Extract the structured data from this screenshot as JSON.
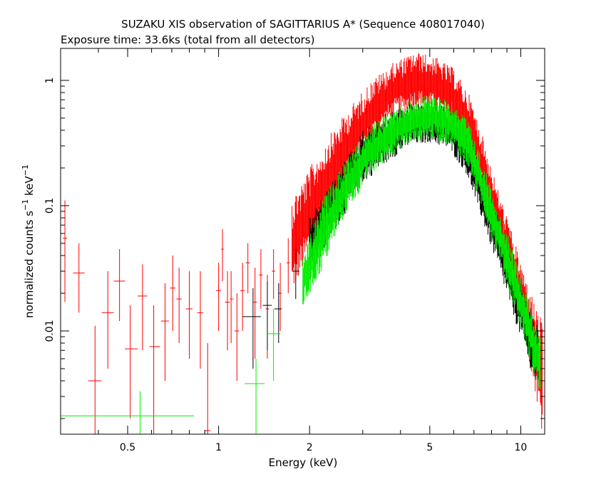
{
  "chart_data": {
    "type": "scatter",
    "title": "SUZAKU XIS observation of SAGITTARIUS A* (Sequence 408017040)",
    "subtitle": "Exposure time: 33.6ks (total from all detectors)",
    "xlabel": "Energy (keV)",
    "ylabel_parts": {
      "base": "normalized counts s",
      "sup1": "−1",
      "mid": " keV",
      "sup2": "−1"
    },
    "x_scale": "log",
    "y_scale": "log",
    "xlim": [
      0.3,
      12
    ],
    "ylim": [
      0.0015,
      1.8
    ],
    "x_ticks": [
      {
        "value": 0.5,
        "label": "0.5"
      },
      {
        "value": 1,
        "label": "1"
      },
      {
        "value": 2,
        "label": "2"
      },
      {
        "value": 5,
        "label": "5"
      },
      {
        "value": 10,
        "label": "10"
      }
    ],
    "y_ticks": [
      {
        "value": 0.01,
        "label": "0.01"
      },
      {
        "value": 0.1,
        "label": "0.1"
      },
      {
        "value": 1,
        "label": "1"
      }
    ],
    "grid": false,
    "series": [
      {
        "color": "#ff0000",
        "points": [
          {
            "x": 0.31,
            "y": 0.055,
            "xerr": [
              0.305,
              0.315
            ],
            "yerr": [
              0.017,
              0.11
            ]
          },
          {
            "x": 0.345,
            "y": 0.029,
            "xerr": [
              0.33,
              0.36
            ],
            "yerr": [
              0.014,
              0.05
            ]
          },
          {
            "x": 0.39,
            "y": 0.004,
            "xerr": [
              0.37,
              0.41
            ],
            "yerr": [
              0.0015,
              0.011
            ]
          },
          {
            "x": 0.43,
            "y": 0.014,
            "xerr": [
              0.41,
              0.45
            ],
            "yerr": [
              0.005,
              0.03
            ]
          },
          {
            "x": 0.47,
            "y": 0.025,
            "xerr": [
              0.45,
              0.49
            ],
            "yerr": [
              0.012,
              0.045
            ]
          },
          {
            "x": 0.51,
            "y": 0.0072,
            "xerr": [
              0.49,
              0.54
            ],
            "yerr": [
              0.002,
              0.016
            ]
          },
          {
            "x": 0.56,
            "y": 0.019,
            "xerr": [
              0.54,
              0.58
            ],
            "yerr": [
              0.007,
              0.034
            ]
          },
          {
            "x": 0.61,
            "y": 0.0075,
            "xerr": [
              0.59,
              0.64
            ],
            "yerr": [
              0.0015,
              0.016
            ]
          },
          {
            "x": 0.665,
            "y": 0.012,
            "xerr": [
              0.645,
              0.685
            ],
            "yerr": [
              0.004,
              0.024
            ]
          },
          {
            "x": 0.705,
            "y": 0.022,
            "xerr": [
              0.69,
              0.72
            ],
            "yerr": [
              0.01,
              0.04
            ]
          },
          {
            "x": 0.74,
            "y": 0.018,
            "xerr": [
              0.725,
              0.755
            ],
            "yerr": [
              0.008,
              0.032
            ]
          },
          {
            "x": 0.8,
            "y": 0.015,
            "xerr": [
              0.78,
              0.82
            ],
            "yerr": [
              0.006,
              0.03
            ]
          },
          {
            "x": 0.87,
            "y": 0.014,
            "xerr": [
              0.85,
              0.89
            ],
            "yerr": [
              0.005,
              0.03
            ]
          },
          {
            "x": 0.92,
            "y": 0.0016,
            "xerr": [
              0.9,
              0.94
            ],
            "yerr": [
              0.0015,
              0.008
            ]
          },
          {
            "x": 1.0,
            "y": 0.021,
            "xerr": [
              0.98,
              1.02
            ],
            "yerr": [
              0.01,
              0.035
            ]
          },
          {
            "x": 1.03,
            "y": 0.045,
            "xerr": [
              1.02,
              1.04
            ],
            "yerr": [
              0.025,
              0.065
            ]
          },
          {
            "x": 1.07,
            "y": 0.017,
            "xerr": [
              1.05,
              1.09
            ],
            "yerr": [
              0.007,
              0.03
            ]
          },
          {
            "x": 1.1,
            "y": 0.018,
            "xerr": [
              1.09,
              1.12
            ],
            "yerr": [
              0.008,
              0.03
            ]
          },
          {
            "x": 1.15,
            "y": 0.01,
            "xerr": [
              1.13,
              1.17
            ],
            "yerr": [
              0.004,
              0.02
            ]
          },
          {
            "x": 1.2,
            "y": 0.021,
            "xerr": [
              1.18,
              1.22
            ],
            "yerr": [
              0.01,
              0.035
            ]
          },
          {
            "x": 1.25,
            "y": 0.035,
            "xerr": [
              1.23,
              1.27
            ],
            "yerr": [
              0.02,
              0.05
            ]
          },
          {
            "x": 1.32,
            "y": 0.017,
            "xerr": [
              1.3,
              1.34
            ],
            "yerr": [
              0.006,
              0.032
            ]
          },
          {
            "x": 1.38,
            "y": 0.028,
            "xerr": [
              1.36,
              1.4
            ],
            "yerr": [
              0.015,
              0.045
            ]
          },
          {
            "x": 1.45,
            "y": 0.015,
            "xerr": [
              1.43,
              1.47
            ],
            "yerr": [
              0.006,
              0.028
            ]
          },
          {
            "x": 1.52,
            "y": 0.03,
            "xerr": [
              1.5,
              1.54
            ],
            "yerr": [
              0.018,
              0.045
            ]
          },
          {
            "x": 1.6,
            "y": 0.02,
            "xerr": [
              1.58,
              1.62
            ],
            "yerr": [
              0.01,
              0.035
            ]
          },
          {
            "x": 1.7,
            "y": 0.035,
            "xerr": [
              1.68,
              1.72
            ],
            "yerr": [
              0.02,
              0.055
            ]
          },
          {
            "x": 1.8,
            "y": 0.045,
            "xerr": [
              1.78,
              1.82
            ],
            "yerr": [
              0.025,
              0.07
            ]
          },
          {
            "x": 1.9,
            "y": 0.06,
            "xerr": [
              1.88,
              1.92
            ],
            "yerr": [
              0.035,
              0.09
            ]
          }
        ],
        "band": [
          {
            "x": 1.75,
            "lo": 0.02,
            "hi": 0.12
          },
          {
            "x": 2.0,
            "lo": 0.04,
            "hi": 0.2
          },
          {
            "x": 2.3,
            "lo": 0.08,
            "hi": 0.35
          },
          {
            "x": 2.7,
            "lo": 0.16,
            "hi": 0.6
          },
          {
            "x": 3.2,
            "lo": 0.32,
            "hi": 1.0
          },
          {
            "x": 3.8,
            "lo": 0.5,
            "hi": 1.4
          },
          {
            "x": 4.5,
            "lo": 0.6,
            "hi": 1.7
          },
          {
            "x": 5.2,
            "lo": 0.55,
            "hi": 1.55
          },
          {
            "x": 6.0,
            "lo": 0.42,
            "hi": 1.25
          },
          {
            "x": 6.8,
            "lo": 0.25,
            "hi": 0.75
          },
          {
            "x": 7.5,
            "lo": 0.12,
            "hi": 0.35
          },
          {
            "x": 8.3,
            "lo": 0.05,
            "hi": 0.15
          },
          {
            "x": 9.2,
            "lo": 0.025,
            "hi": 0.07
          },
          {
            "x": 10.0,
            "lo": 0.012,
            "hi": 0.035
          },
          {
            "x": 11.0,
            "lo": 0.004,
            "hi": 0.018
          },
          {
            "x": 11.8,
            "lo": 0.0015,
            "hi": 0.012
          }
        ]
      },
      {
        "color": "#000000",
        "points": [
          {
            "x": 1.3,
            "y": 0.013,
            "xerr": [
              1.2,
              1.38
            ],
            "yerr": [
              0.005,
              0.022
            ]
          },
          {
            "x": 1.45,
            "y": 0.016,
            "xerr": [
              1.4,
              1.5
            ],
            "yerr": [
              0.007,
              0.025
            ]
          },
          {
            "x": 1.58,
            "y": 0.015,
            "xerr": [
              1.53,
              1.62
            ],
            "yerr": [
              0.008,
              0.024
            ]
          },
          {
            "x": 1.8,
            "y": 0.03,
            "xerr": [
              1.75,
              1.85
            ],
            "yerr": [
              0.018,
              0.045
            ]
          }
        ],
        "band": [
          {
            "x": 2.0,
            "lo": 0.025,
            "hi": 0.08
          },
          {
            "x": 2.4,
            "lo": 0.06,
            "hi": 0.16
          },
          {
            "x": 3.0,
            "lo": 0.15,
            "hi": 0.4
          },
          {
            "x": 3.6,
            "lo": 0.22,
            "hi": 0.55
          },
          {
            "x": 4.3,
            "lo": 0.3,
            "hi": 0.65
          },
          {
            "x": 5.0,
            "lo": 0.32,
            "hi": 0.68
          },
          {
            "x": 5.8,
            "lo": 0.28,
            "hi": 0.6
          },
          {
            "x": 6.6,
            "lo": 0.18,
            "hi": 0.42
          },
          {
            "x": 7.4,
            "lo": 0.08,
            "hi": 0.2
          },
          {
            "x": 8.3,
            "lo": 0.035,
            "hi": 0.09
          },
          {
            "x": 9.3,
            "lo": 0.015,
            "hi": 0.04
          },
          {
            "x": 10.3,
            "lo": 0.007,
            "hi": 0.02
          },
          {
            "x": 11.5,
            "lo": 0.003,
            "hi": 0.01
          }
        ]
      },
      {
        "color": "#00ee00",
        "points": [
          {
            "x": 0.55,
            "y": 0.0021,
            "xerr": [
              0.3,
              0.83
            ],
            "yerr": [
              0.0015,
              0.0033
            ]
          },
          {
            "x": 1.33,
            "y": 0.0038,
            "xerr": [
              1.22,
              1.42
            ],
            "yerr": [
              0.0015,
              0.006
            ]
          },
          {
            "x": 1.52,
            "y": 0.0095,
            "xerr": [
              1.45,
              1.6
            ],
            "yerr": [
              0.004,
              0.015
            ]
          }
        ],
        "band": [
          {
            "x": 1.9,
            "lo": 0.015,
            "hi": 0.04
          },
          {
            "x": 2.2,
            "lo": 0.03,
            "hi": 0.11
          },
          {
            "x": 2.6,
            "lo": 0.08,
            "hi": 0.22
          },
          {
            "x": 3.1,
            "lo": 0.16,
            "hi": 0.4
          },
          {
            "x": 3.7,
            "lo": 0.25,
            "hi": 0.58
          },
          {
            "x": 4.4,
            "lo": 0.32,
            "hi": 0.72
          },
          {
            "x": 5.1,
            "lo": 0.34,
            "hi": 0.78
          },
          {
            "x": 5.9,
            "lo": 0.3,
            "hi": 0.7
          },
          {
            "x": 6.7,
            "lo": 0.2,
            "hi": 0.48
          },
          {
            "x": 7.5,
            "lo": 0.09,
            "hi": 0.22
          },
          {
            "x": 8.4,
            "lo": 0.04,
            "hi": 0.1
          },
          {
            "x": 9.4,
            "lo": 0.017,
            "hi": 0.045
          },
          {
            "x": 10.5,
            "lo": 0.007,
            "hi": 0.02
          },
          {
            "x": 11.6,
            "lo": 0.003,
            "hi": 0.009
          }
        ]
      }
    ]
  }
}
